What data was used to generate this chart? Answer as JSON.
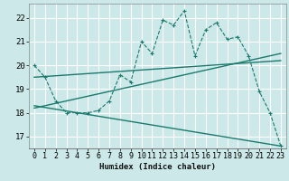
{
  "xlabel": "Humidex (Indice chaleur)",
  "bg_color": "#cce8e8",
  "plot_bg_color": "#cce8e8",
  "grid_color": "#ffffff",
  "line_color": "#1a7a6e",
  "xlim": [
    -0.5,
    23.5
  ],
  "ylim": [
    16.5,
    22.6
  ],
  "yticks": [
    17,
    18,
    19,
    20,
    21,
    22
  ],
  "xticks": [
    0,
    1,
    2,
    3,
    4,
    5,
    6,
    7,
    8,
    9,
    10,
    11,
    12,
    13,
    14,
    15,
    16,
    17,
    18,
    19,
    20,
    21,
    22,
    23
  ],
  "series1_x": [
    0,
    1,
    2,
    3,
    4,
    5,
    6,
    7,
    8,
    9,
    10,
    11,
    12,
    13,
    14,
    15,
    16,
    17,
    18,
    19,
    20,
    21,
    22,
    23
  ],
  "series1_y": [
    20.0,
    19.5,
    18.5,
    18.0,
    18.0,
    18.0,
    18.1,
    18.5,
    19.6,
    19.3,
    21.0,
    20.5,
    21.9,
    21.7,
    22.3,
    20.4,
    21.5,
    21.8,
    21.1,
    21.2,
    20.4,
    18.9,
    18.0,
    16.6
  ],
  "trend1_x": [
    0,
    23
  ],
  "trend1_y": [
    19.5,
    20.2
  ],
  "trend2_x": [
    0,
    23
  ],
  "trend2_y": [
    18.2,
    20.5
  ],
  "trend3_x": [
    0,
    23
  ],
  "trend3_y": [
    18.3,
    16.6
  ],
  "xlabel_fontsize": 6.5,
  "tick_fontsize": 6.0
}
